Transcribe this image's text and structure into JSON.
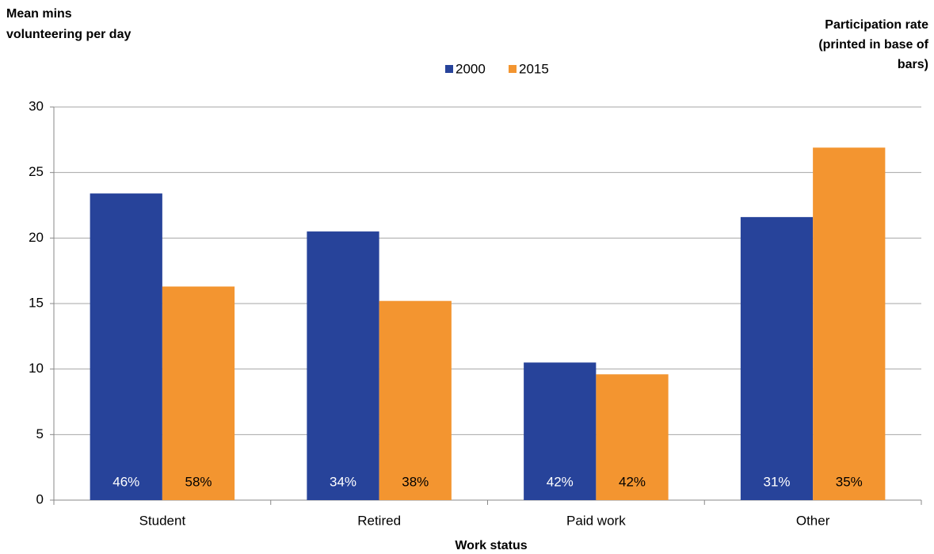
{
  "chart_data": {
    "type": "bar",
    "y_label": [
      "Mean mins",
      "volunteering per day"
    ],
    "y2_note": [
      "Participation rate",
      "(printed in base of",
      "bars)"
    ],
    "x_label": "Work status",
    "categories": [
      "Student",
      "Retired",
      "Paid work",
      "Other"
    ],
    "series": [
      {
        "name": "2000",
        "color": "#27439a",
        "values": [
          23.4,
          20.5,
          10.5,
          21.6
        ],
        "rate_labels": [
          "46%",
          "34%",
          "42%",
          "31%"
        ]
      },
      {
        "name": "2015",
        "color": "#f39530",
        "values": [
          16.3,
          15.2,
          9.6,
          26.9
        ],
        "rate_labels": [
          "58%",
          "38%",
          "42%",
          "35%"
        ]
      }
    ],
    "ylim": [
      0,
      30
    ],
    "yticks": [
      0,
      5,
      10,
      15,
      20,
      25,
      30
    ],
    "grid": true,
    "legend": "top"
  }
}
